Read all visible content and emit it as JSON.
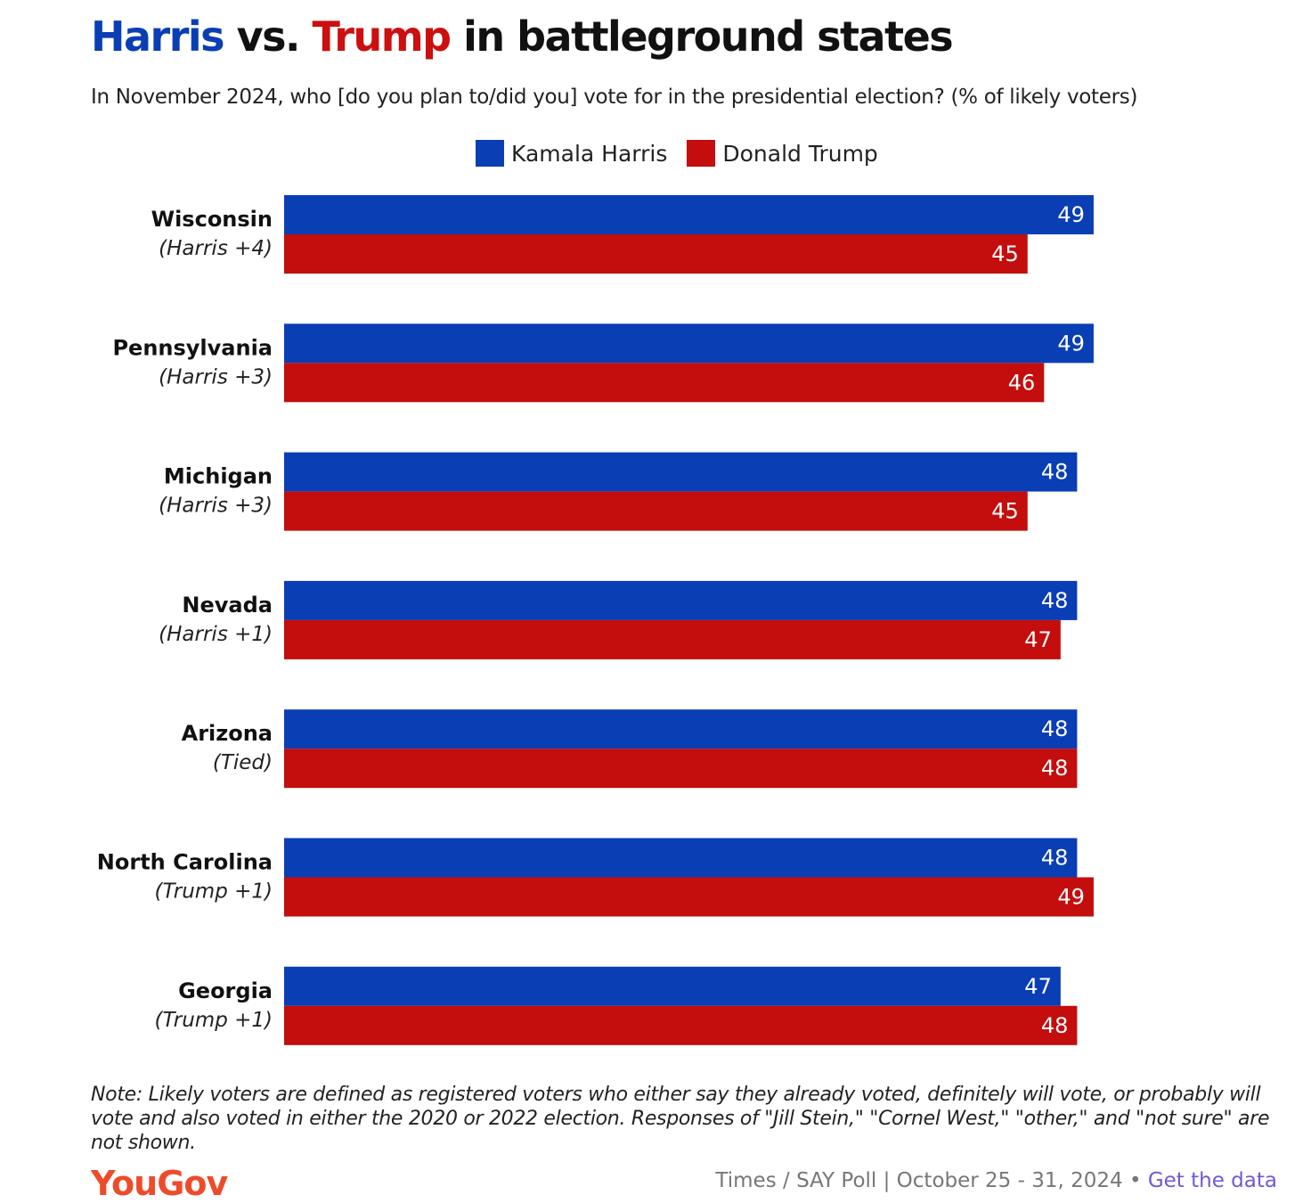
{
  "header": {
    "title_harris": "Harris",
    "title_vs": " vs. ",
    "title_trump": "Trump",
    "title_rest": " in battleground states",
    "subtitle": "In November 2024, who [do you plan to/did you] vote for in the presidential election? (% of likely voters)"
  },
  "legend": {
    "harris_label": "Kamala Harris",
    "trump_label": "Donald Trump"
  },
  "colors": {
    "harris": "#0a3eb4",
    "trump": "#c40d0d",
    "logo": "#ee4b2b",
    "link": "#6e5ad8"
  },
  "chart_data": {
    "type": "bar",
    "orientation": "horizontal",
    "categories": [
      "Wisconsin",
      "Pennsylvania",
      "Michigan",
      "Nevada",
      "Arizona",
      "North Carolina",
      "Georgia"
    ],
    "category_sublabels": [
      "(Harris +4)",
      "(Harris +3)",
      "(Harris +3)",
      "(Harris +1)",
      "(Tied)",
      "(Trump +1)",
      "(Trump +1)"
    ],
    "series": [
      {
        "name": "Kamala Harris",
        "color": "#0a3eb4",
        "values": [
          49,
          49,
          48,
          48,
          48,
          48,
          47
        ]
      },
      {
        "name": "Donald Trump",
        "color": "#c40d0d",
        "values": [
          45,
          46,
          45,
          47,
          48,
          49,
          48
        ]
      }
    ],
    "xlim": [
      0,
      49
    ],
    "grid": false,
    "legend_position": "top-center"
  },
  "footer": {
    "note": "Note: Likely voters are defined as registered voters who either say they already voted, definitely will vote, or probably will vote and also voted in either the 2020 or 2022 election. Responses of \"Jill Stein,\" \"Cornel West,\" \"other,\" and \"not sure\" are not shown.",
    "logo": "YouGov",
    "source": "Times / SAY Poll | October 25 - 31, 2024 • ",
    "link": "Get the data"
  }
}
